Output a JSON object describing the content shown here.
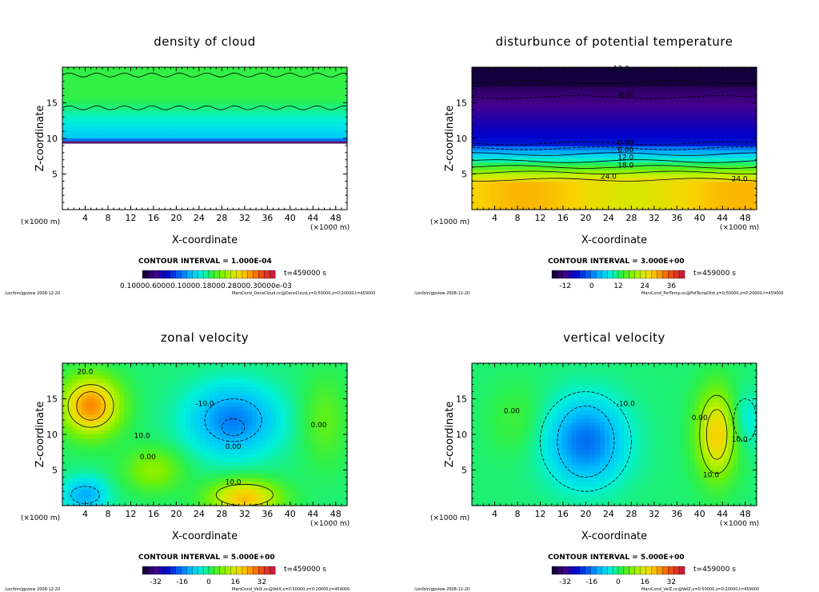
{
  "panels": [
    {
      "id": "density-of-cloud",
      "title": "density of cloud",
      "xlabel": "X-coordinate",
      "ylabel": "Z-coordinate",
      "x_unit": "(×1000 m)",
      "y_unit": "(×1000 m)",
      "x_ticks": [
        "4",
        "8",
        "12",
        "16",
        "20",
        "24",
        "28",
        "32",
        "36",
        "40",
        "44",
        "48"
      ],
      "y_ticks": [
        "5",
        "10",
        "15"
      ],
      "contour_interval": "CONTOUR INTERVAL = 1.000E-04",
      "time": "t=459000 s",
      "colorbar_labels": "0.10000.60000.10000.18000.28000.30000e-03",
      "footer_left": "/usr/bin/gpview   2008-12-20",
      "footer_right": "MarsCond_DensCloud.nc@DensCloud,x=0:50000,z=0:20000,t=459000",
      "contour_labels": [],
      "field": "cloud"
    },
    {
      "id": "disturbance-potential-temperature",
      "title": "disturbunce of potential temperature",
      "xlabel": "X-coordinate",
      "ylabel": "Z-coordinate",
      "x_unit": "(×1000 m)",
      "y_unit": "(×1000 m)",
      "x_ticks": [
        "4",
        "8",
        "12",
        "16",
        "20",
        "24",
        "28",
        "32",
        "36",
        "40",
        "44",
        "48"
      ],
      "y_ticks": [
        "5",
        "10",
        "15"
      ],
      "contour_interval": "CONTOUR INTERVAL = 3.000E+00",
      "time": "t=459000 s",
      "colorbar_ticks": [
        "-12",
        "0",
        "12",
        "24",
        "36"
      ],
      "footer_left": "/usr/bin/gpview   2008-12-20",
      "footer_right": "MarsCond_PotTemp.nc@PotTempDist,x=0:50000,z=0:20000,t=459000",
      "contour_labels": [
        "-12.0",
        "-6.00",
        "0.00",
        "6.00",
        "12.0",
        "18.0",
        "24.0",
        "24.0"
      ],
      "field": "theta"
    },
    {
      "id": "zonal-velocity",
      "title": "zonal velocity",
      "xlabel": "X-coordinate",
      "ylabel": "Z-coordinate",
      "x_unit": "(×1000 m)",
      "y_unit": "(×1000 m)",
      "x_ticks": [
        "4",
        "8",
        "12",
        "16",
        "20",
        "24",
        "28",
        "32",
        "36",
        "40",
        "44",
        "48"
      ],
      "y_ticks": [
        "5",
        "10",
        "15"
      ],
      "contour_interval": "CONTOUR INTERVAL = 5.000E+00",
      "time": "t=459000 s",
      "colorbar_ticks": [
        "-32",
        "-16",
        "0",
        "16",
        "32"
      ],
      "footer_left": "/usr/bin/gpview   2008-12-20",
      "footer_right": "MarsCond_VelX.nc@VelX,x=0:50000,z=0:20000,t=459000",
      "contour_labels": [
        "20.0",
        "10.0",
        "0.00",
        "0.00",
        "-10.0",
        "10.0",
        "0.00"
      ],
      "field": "u"
    },
    {
      "id": "vertical-velocity",
      "title": "vertical velocity",
      "xlabel": "X-coordinate",
      "ylabel": "Z-coordinate",
      "x_unit": "(×1000 m)",
      "y_unit": "(×1000 m)",
      "x_ticks": [
        "4",
        "8",
        "12",
        "16",
        "20",
        "24",
        "28",
        "32",
        "36",
        "40",
        "44",
        "48"
      ],
      "y_ticks": [
        "5",
        "10",
        "15"
      ],
      "contour_interval": "CONTOUR INTERVAL = 5.000E+00",
      "time": "t=459000 s",
      "colorbar_ticks": [
        "-32",
        "-16",
        "0",
        "16",
        "32"
      ],
      "footer_left": "/usr/bin/gpview   2008-12-20",
      "footer_right": "MarsCond_VelZ.nc@VelZ,x=0:50000,z=0:20000,t=459000",
      "contour_labels": [
        "0.00",
        "-10.0",
        "0.00",
        "10.0",
        "10.0"
      ],
      "field": "w"
    }
  ],
  "chart_data": [
    {
      "type": "heatmap",
      "title": "density of cloud",
      "xlabel": "X-coordinate",
      "ylabel": "Z-coordinate",
      "xlim": [
        0,
        50
      ],
      "ylim": [
        0,
        20
      ],
      "colorbar_range": [
        0.0001,
        0.0003
      ],
      "description_values": {
        "cloud_base_z": 9.3,
        "cloud_top_z": 19.5
      }
    },
    {
      "type": "heatmap",
      "title": "disturbunce of potential temperature",
      "xlabel": "X-coordinate",
      "ylabel": "Z-coordinate",
      "xlim": [
        0,
        50
      ],
      "ylim": [
        0,
        20
      ],
      "colorbar_range": [
        -12,
        36
      ],
      "contour_levels": [
        -12,
        -6,
        0,
        6,
        12,
        18,
        24
      ]
    },
    {
      "type": "heatmap",
      "title": "zonal velocity",
      "xlabel": "X-coordinate",
      "ylabel": "Z-coordinate",
      "xlim": [
        0,
        50
      ],
      "ylim": [
        0,
        20
      ],
      "colorbar_range": [
        -32,
        32
      ],
      "contour_levels": [
        -10,
        0,
        10,
        20
      ]
    },
    {
      "type": "heatmap",
      "title": "vertical velocity",
      "xlabel": "X-coordinate",
      "ylabel": "Z-coordinate",
      "xlim": [
        0,
        50
      ],
      "ylim": [
        0,
        20
      ],
      "colorbar_range": [
        -32,
        32
      ],
      "contour_levels": [
        -10,
        0,
        10
      ]
    }
  ]
}
